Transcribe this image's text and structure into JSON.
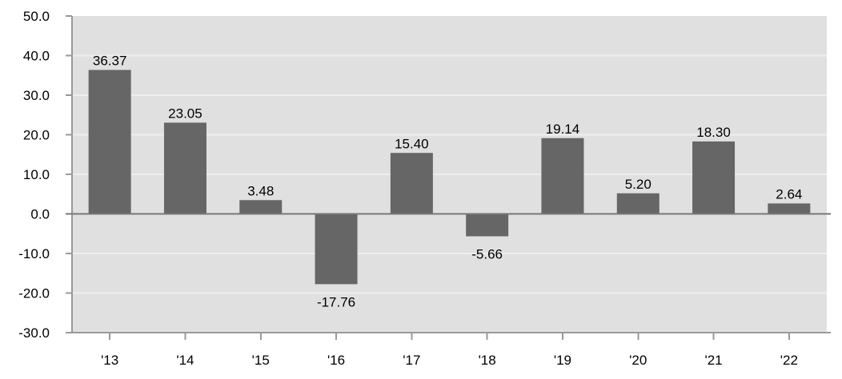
{
  "chart_data": {
    "type": "bar",
    "title": "",
    "xlabel": "",
    "ylabel": "",
    "categories": [
      "'13",
      "'14",
      "'15",
      "'16",
      "'17",
      "'18",
      "'19",
      "'20",
      "'21",
      "'22"
    ],
    "values": [
      36.37,
      23.05,
      3.48,
      -17.76,
      15.4,
      -5.66,
      19.14,
      5.2,
      18.3,
      2.64
    ],
    "value_labels": [
      "36.37",
      "23.05",
      "3.48",
      "-17.76",
      "15.40",
      "-5.66",
      "19.14",
      "5.20",
      "18.30",
      "2.64"
    ],
    "ylim": [
      -30,
      50
    ],
    "ytick_step": 10,
    "yticks": [
      50,
      40,
      30,
      20,
      10,
      0,
      -10,
      -20,
      -30
    ],
    "ytick_labels": [
      "50.0",
      "40.0",
      "30.0",
      "20.0",
      "10.0",
      "0.0",
      "-10.0",
      "-20.0",
      "-30.0"
    ],
    "grid": true,
    "legend_position": "none",
    "colors": {
      "bar": "#666666",
      "plot_bg": "#e0e0e0",
      "gridline": "#eeeeee",
      "axis": "#999999",
      "zero_line": "#777777",
      "text": "#000000",
      "page_bg": "#ffffff"
    }
  }
}
